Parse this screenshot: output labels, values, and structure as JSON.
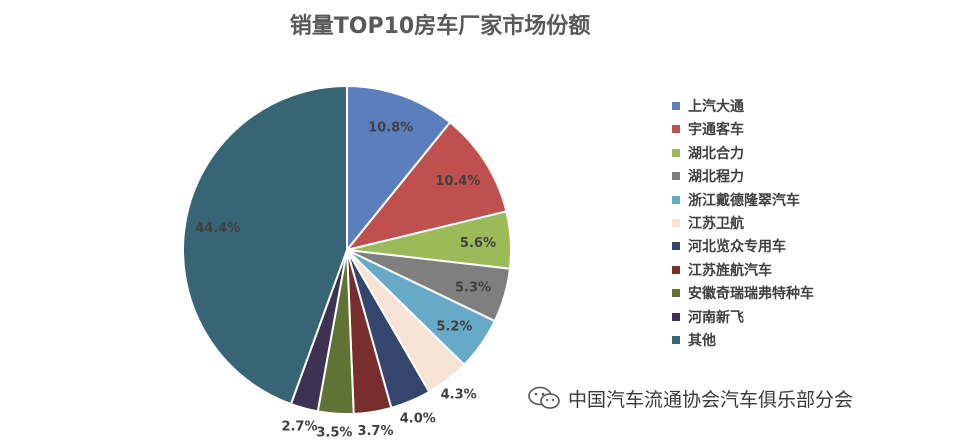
{
  "chart_data": {
    "type": "pie",
    "title": "销量TOP10房车厂家市场份额",
    "series": [
      {
        "label": "上汽大通",
        "value": 10.8,
        "display": "10.8%",
        "color": "#5b7fbd"
      },
      {
        "label": "宇通客车",
        "value": 10.4,
        "display": "10.4%",
        "color": "#c0504d"
      },
      {
        "label": "湖北合力",
        "value": 5.6,
        "display": "5.6%",
        "color": "#9bbb59"
      },
      {
        "label": "湖北程力",
        "value": 5.3,
        "display": "5.3%",
        "color": "#7f7f7f"
      },
      {
        "label": "浙江戴德隆翠汽车",
        "value": 5.2,
        "display": "5.2%",
        "color": "#66aac8"
      },
      {
        "label": "江苏卫航",
        "value": 4.3,
        "display": "4.3%",
        "color": "#f7e3d6"
      },
      {
        "label": "河北览众专用车",
        "value": 4.0,
        "display": "4.0%",
        "color": "#34466e"
      },
      {
        "label": "江苏旌航汽车",
        "value": 3.7,
        "display": "3.7%",
        "color": "#782e2c"
      },
      {
        "label": "安徽奇瑞瑞弗特种车",
        "value": 3.5,
        "display": "3.5%",
        "color": "#5f7334"
      },
      {
        "label": "河南新飞",
        "value": 2.7,
        "display": "2.7%",
        "color": "#3f3151"
      },
      {
        "label": "其他",
        "value": 44.4,
        "display": "44.4%",
        "color": "#376576"
      }
    ],
    "legend_position": "right"
  },
  "watermark": {
    "icon": "wechat-icon",
    "text": "中国汽车流通协会汽车俱乐部分会"
  }
}
